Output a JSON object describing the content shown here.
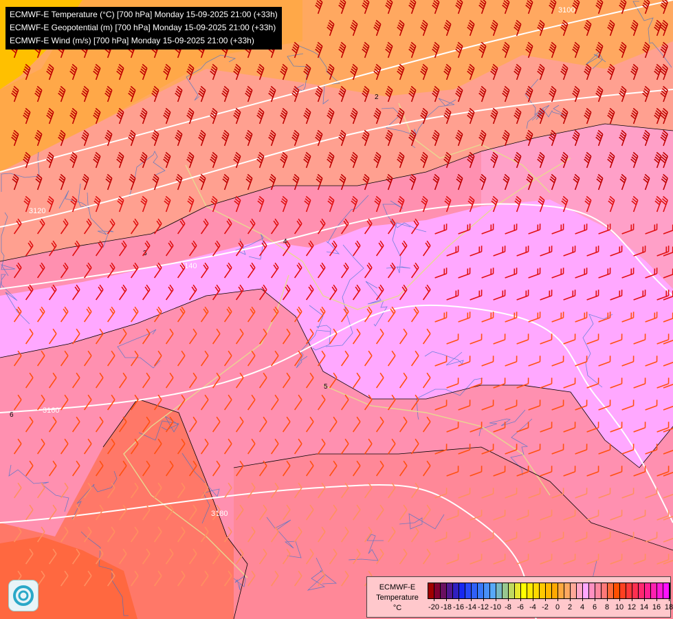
{
  "header": {
    "lines": [
      "ECMWF-E Temperature (°C) [700 hPa] Monday 15-09-2025 21:00 (+33h)",
      "ECMWF-E Geopotential (m) [700 hPa] Monday 15-09-2025 21:00 (+33h)",
      "ECMWF-E Wind (m/s) [700 hPa] Monday 15-09-2025 21:00 (+33h)"
    ]
  },
  "map": {
    "geopotential_contours": [
      "3100",
      "3120",
      "3140",
      "3160",
      "3180"
    ],
    "temperature_contours": [
      "2",
      "3",
      "4",
      "5",
      "6"
    ],
    "contour_color": "#ffffff",
    "isotherm_color": "#000000",
    "border_color": "#e8d890",
    "river_color": "#3070d0"
  },
  "legend": {
    "title_lines": [
      "ECMWF-E",
      "Temperature",
      "°C"
    ],
    "tick_labels": [
      "-20",
      "-18",
      "-16",
      "-14",
      "-12",
      "-10",
      "-8",
      "-6",
      "-4",
      "-2",
      "0",
      "2",
      "4",
      "6",
      "8",
      "10",
      "12",
      "14",
      "16",
      "18"
    ],
    "colors": [
      "#a00000",
      "#800030",
      "#6a1060",
      "#501890",
      "#3020c0",
      "#1828f0",
      "#2848f8",
      "#3060f8",
      "#3878f8",
      "#4890f8",
      "#58a8f8",
      "#78b8c0",
      "#98c890",
      "#c0d860",
      "#e8e830",
      "#ffff00",
      "#ffe800",
      "#ffd800",
      "#ffc800",
      "#ffb800",
      "#ffa800",
      "#ffa840",
      "#ffa860",
      "#ffa898",
      "#ffa8c8",
      "#ffa8ff",
      "#ff90c0",
      "#ff88a0",
      "#ff7878",
      "#ff6838",
      "#ff5000",
      "#ff4020",
      "#ff3838",
      "#ff3050",
      "#ff2870",
      "#ff2090",
      "#ff20b0",
      "#ff18d8",
      "#ff10ff"
    ]
  },
  "logo": {
    "icon": "ecmwf-swirl-logo"
  }
}
